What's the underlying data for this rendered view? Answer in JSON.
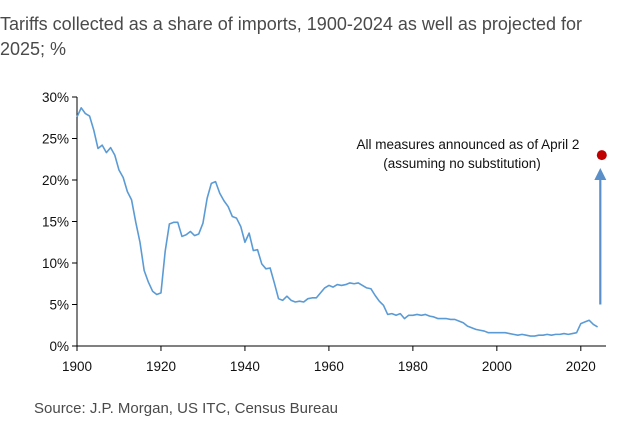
{
  "header": {
    "title": "Tariffs collected as a share of imports, 1900-2024 as well as projected for 2025; %"
  },
  "footer": {
    "source": "Source: J.P. Morgan, US ITC, Census Bureau"
  },
  "colors": {
    "line": "#5b9bd5",
    "projection_marker": "#c00000",
    "arrow": "#5b8fc9",
    "axis": "#000000"
  },
  "chart_data": {
    "type": "line",
    "title": "Tariffs collected as a share of imports, 1900-2024 as well as projected for 2025; %",
    "xlabel": "",
    "ylabel": "",
    "xlim": [
      1900,
      2026
    ],
    "ylim": [
      0,
      30
    ],
    "x_ticks": [
      1900,
      1920,
      1940,
      1960,
      1980,
      2000,
      2020
    ],
    "y_ticks": [
      "0%",
      "5%",
      "10%",
      "15%",
      "20%",
      "25%",
      "30%"
    ],
    "y_tick_values": [
      0,
      5,
      10,
      15,
      20,
      25,
      30
    ],
    "grid": false,
    "series": [
      {
        "x": [
          1900,
          1901,
          1902,
          1903,
          1904,
          1905,
          1906,
          1907,
          1908,
          1909,
          1910,
          1911,
          1912,
          1913,
          1914,
          1915,
          1916,
          1917,
          1918,
          1919,
          1920,
          1921,
          1922,
          1923,
          1924,
          1925,
          1926,
          1927,
          1928,
          1929,
          1930,
          1931,
          1932,
          1933,
          1934,
          1935,
          1936,
          1937,
          1938,
          1939,
          1940,
          1941,
          1942,
          1943,
          1944,
          1945,
          1946,
          1947,
          1948,
          1949,
          1950,
          1951,
          1952,
          1953,
          1954,
          1955,
          1956,
          1957,
          1958,
          1959,
          1960,
          1961,
          1962,
          1963,
          1964,
          1965,
          1966,
          1967,
          1968,
          1969,
          1970,
          1971,
          1972,
          1973,
          1974,
          1975,
          1976,
          1977,
          1978,
          1979,
          1980,
          1981,
          1982,
          1983,
          1984,
          1985,
          1986,
          1987,
          1988,
          1989,
          1990,
          1991,
          1992,
          1993,
          1994,
          1995,
          1996,
          1997,
          1998,
          1999,
          2000,
          2001,
          2002,
          2003,
          2004,
          2005,
          2006,
          2007,
          2008,
          2009,
          2010,
          2011,
          2012,
          2013,
          2014,
          2015,
          2016,
          2017,
          2018,
          2019,
          2020,
          2021,
          2022,
          2023,
          2024
        ],
        "values": [
          27.6,
          28.7,
          28.0,
          27.7,
          26.0,
          23.8,
          24.2,
          23.3,
          23.9,
          23.0,
          21.2,
          20.3,
          18.6,
          17.6,
          14.9,
          12.5,
          9.1,
          7.7,
          6.6,
          6.2,
          6.4,
          11.4,
          14.7,
          14.9,
          14.9,
          13.2,
          13.4,
          13.8,
          13.3,
          13.5,
          14.8,
          17.8,
          19.6,
          19.8,
          18.4,
          17.5,
          16.8,
          15.6,
          15.4,
          14.4,
          12.5,
          13.6,
          11.5,
          11.6,
          9.9,
          9.3,
          9.4,
          7.6,
          5.7,
          5.5,
          6.0,
          5.5,
          5.3,
          5.4,
          5.3,
          5.7,
          5.8,
          5.8,
          6.4,
          7.0,
          7.3,
          7.1,
          7.4,
          7.3,
          7.4,
          7.6,
          7.5,
          7.6,
          7.3,
          7.0,
          6.9,
          6.1,
          5.4,
          4.9,
          3.8,
          3.9,
          3.7,
          3.9,
          3.3,
          3.7,
          3.7,
          3.8,
          3.7,
          3.8,
          3.6,
          3.5,
          3.3,
          3.3,
          3.3,
          3.2,
          3.2,
          3.0,
          2.8,
          2.4,
          2.2,
          2.0,
          1.9,
          1.8,
          1.6,
          1.6,
          1.6,
          1.6,
          1.6,
          1.5,
          1.4,
          1.3,
          1.4,
          1.3,
          1.2,
          1.2,
          1.3,
          1.3,
          1.4,
          1.3,
          1.4,
          1.4,
          1.5,
          1.4,
          1.5,
          1.6,
          2.7,
          2.9,
          3.1,
          2.6,
          2.3
        ]
      }
    ],
    "projection": {
      "x": 2025,
      "value": 23.0,
      "annotation": [
        "All measures announced as of April 2",
        "(assuming no substitution)"
      ]
    }
  }
}
